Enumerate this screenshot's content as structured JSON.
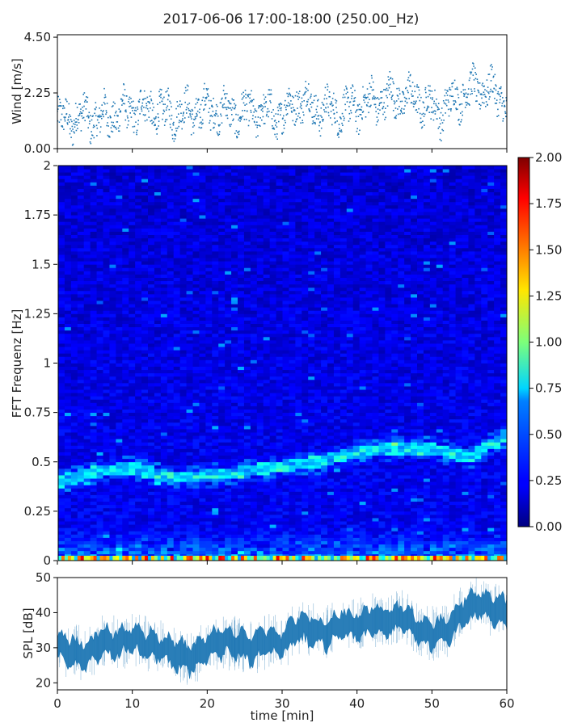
{
  "figure": {
    "title": "2017-06-06 17:00-18:00 (250.00_Hz)"
  },
  "chart_data": [
    {
      "type": "scatter",
      "name": "wind-panel",
      "ylabel": "Wind [m/s]",
      "ylim": [
        0,
        4.6
      ],
      "xlim": [
        0,
        60
      ],
      "yticks": [
        "0.00",
        "2.25",
        "4.50"
      ],
      "ytick_values": [
        0,
        2.25,
        4.5
      ],
      "marker_color": "#1f77b4",
      "trend": {
        "x": [
          0,
          3,
          6,
          9,
          12,
          15,
          18,
          21,
          24,
          27,
          30,
          32,
          35,
          38,
          42,
          45,
          48,
          51,
          54,
          57,
          60
        ],
        "y": [
          1.1,
          1.3,
          1.2,
          1.5,
          1.6,
          1.4,
          1.5,
          1.6,
          1.4,
          1.5,
          1.3,
          2.0,
          1.6,
          1.5,
          1.9,
          2.1,
          2.0,
          1.5,
          2.2,
          2.5,
          1.9
        ]
      }
    },
    {
      "type": "heatmap",
      "name": "spectrogram-panel",
      "ylabel": "FFT Frequenz [Hz]",
      "ylim": [
        0,
        2
      ],
      "xlim": [
        0,
        60
      ],
      "yticks": [
        "0",
        "0.25",
        "0.5",
        "0.75",
        "1",
        "1.25",
        "1.5",
        "1.75",
        "2"
      ],
      "ytick_values": [
        0,
        0.25,
        0.5,
        0.75,
        1,
        1.25,
        1.5,
        1.75,
        2
      ],
      "colormap": "jet",
      "colorbar": {
        "vmin": 0,
        "vmax": 2,
        "ticks": [
          "0.00",
          "0.25",
          "0.50",
          "0.75",
          "1.00",
          "1.25",
          "1.50",
          "1.75",
          "2.00"
        ],
        "tick_values": [
          0,
          0.25,
          0.5,
          0.75,
          1,
          1.25,
          1.5,
          1.75,
          2
        ]
      },
      "ridges": [
        {
          "x": [
            0,
            5,
            10,
            15,
            20,
            25,
            30,
            35,
            40,
            45,
            50,
            55,
            60
          ],
          "y": [
            0.4,
            0.45,
            0.47,
            0.42,
            0.43,
            0.45,
            0.48,
            0.5,
            0.55,
            0.57,
            0.57,
            0.52,
            0.64
          ],
          "intensity": 0.62
        }
      ],
      "base_band": {
        "y": [
          0,
          0.08
        ],
        "intensity": 0.9
      }
    },
    {
      "type": "area",
      "name": "spl-panel",
      "ylabel": "SPL [dB]",
      "xlabel": "time [min]",
      "ylim": [
        18,
        50
      ],
      "xlim": [
        0,
        60
      ],
      "yticks": [
        "20",
        "30",
        "40",
        "50"
      ],
      "ytick_values": [
        20,
        30,
        40,
        50
      ],
      "xticks": [
        "0",
        "10",
        "20",
        "30",
        "40",
        "50",
        "60"
      ],
      "xtick_values": [
        0,
        10,
        20,
        30,
        40,
        50,
        60
      ],
      "color": "#1f77b4",
      "x": [
        0,
        2,
        4,
        6,
        8,
        10,
        12,
        14,
        16,
        18,
        20,
        22,
        24,
        26,
        28,
        30,
        32,
        34,
        36,
        38,
        40,
        42,
        44,
        46,
        48,
        50,
        52,
        54,
        56,
        58,
        60
      ],
      "y": [
        30,
        29,
        28,
        32,
        31,
        33,
        31,
        30,
        28,
        27,
        30,
        32,
        31,
        30,
        32,
        31,
        36,
        35,
        34,
        37,
        36,
        38,
        37,
        39,
        35,
        34,
        35,
        40,
        43,
        41,
        40
      ]
    }
  ]
}
